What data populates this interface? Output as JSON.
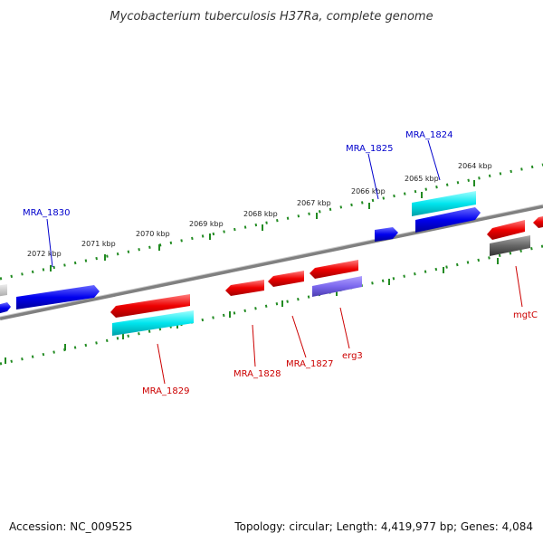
{
  "title": "Mycobacterium tuberculosis H37Ra, complete genome",
  "footer": {
    "accession": "Accession: NC_009525",
    "summary": "Topology: circular; Length: 4,419,977 bp; Genes: 4,084"
  },
  "kbp_ticks": [
    "2072 kbp",
    "2071 kbp",
    "2070 kbp",
    "2069 kbp",
    "2068 kbp",
    "2067 kbp",
    "2066 kbp",
    "2065 kbp",
    "2064 kbp"
  ],
  "gene_labels": [
    "MRA_1830",
    "MRA_1825",
    "MRA_1824",
    "MRA_1829",
    "MRA_1828",
    "MRA_1827",
    "erg3",
    "mgtC"
  ],
  "colors": {
    "forward_gene": "#0000ee",
    "reverse_gene": "#ee0000",
    "cds_cyan": "#00e5ee",
    "purple_feature": "#7b68ee",
    "gray_feature": "#666666",
    "backbone": "#808080",
    "tick_green": "#228b22",
    "label_blue": "#0000cc",
    "label_red": "#cc0000"
  }
}
